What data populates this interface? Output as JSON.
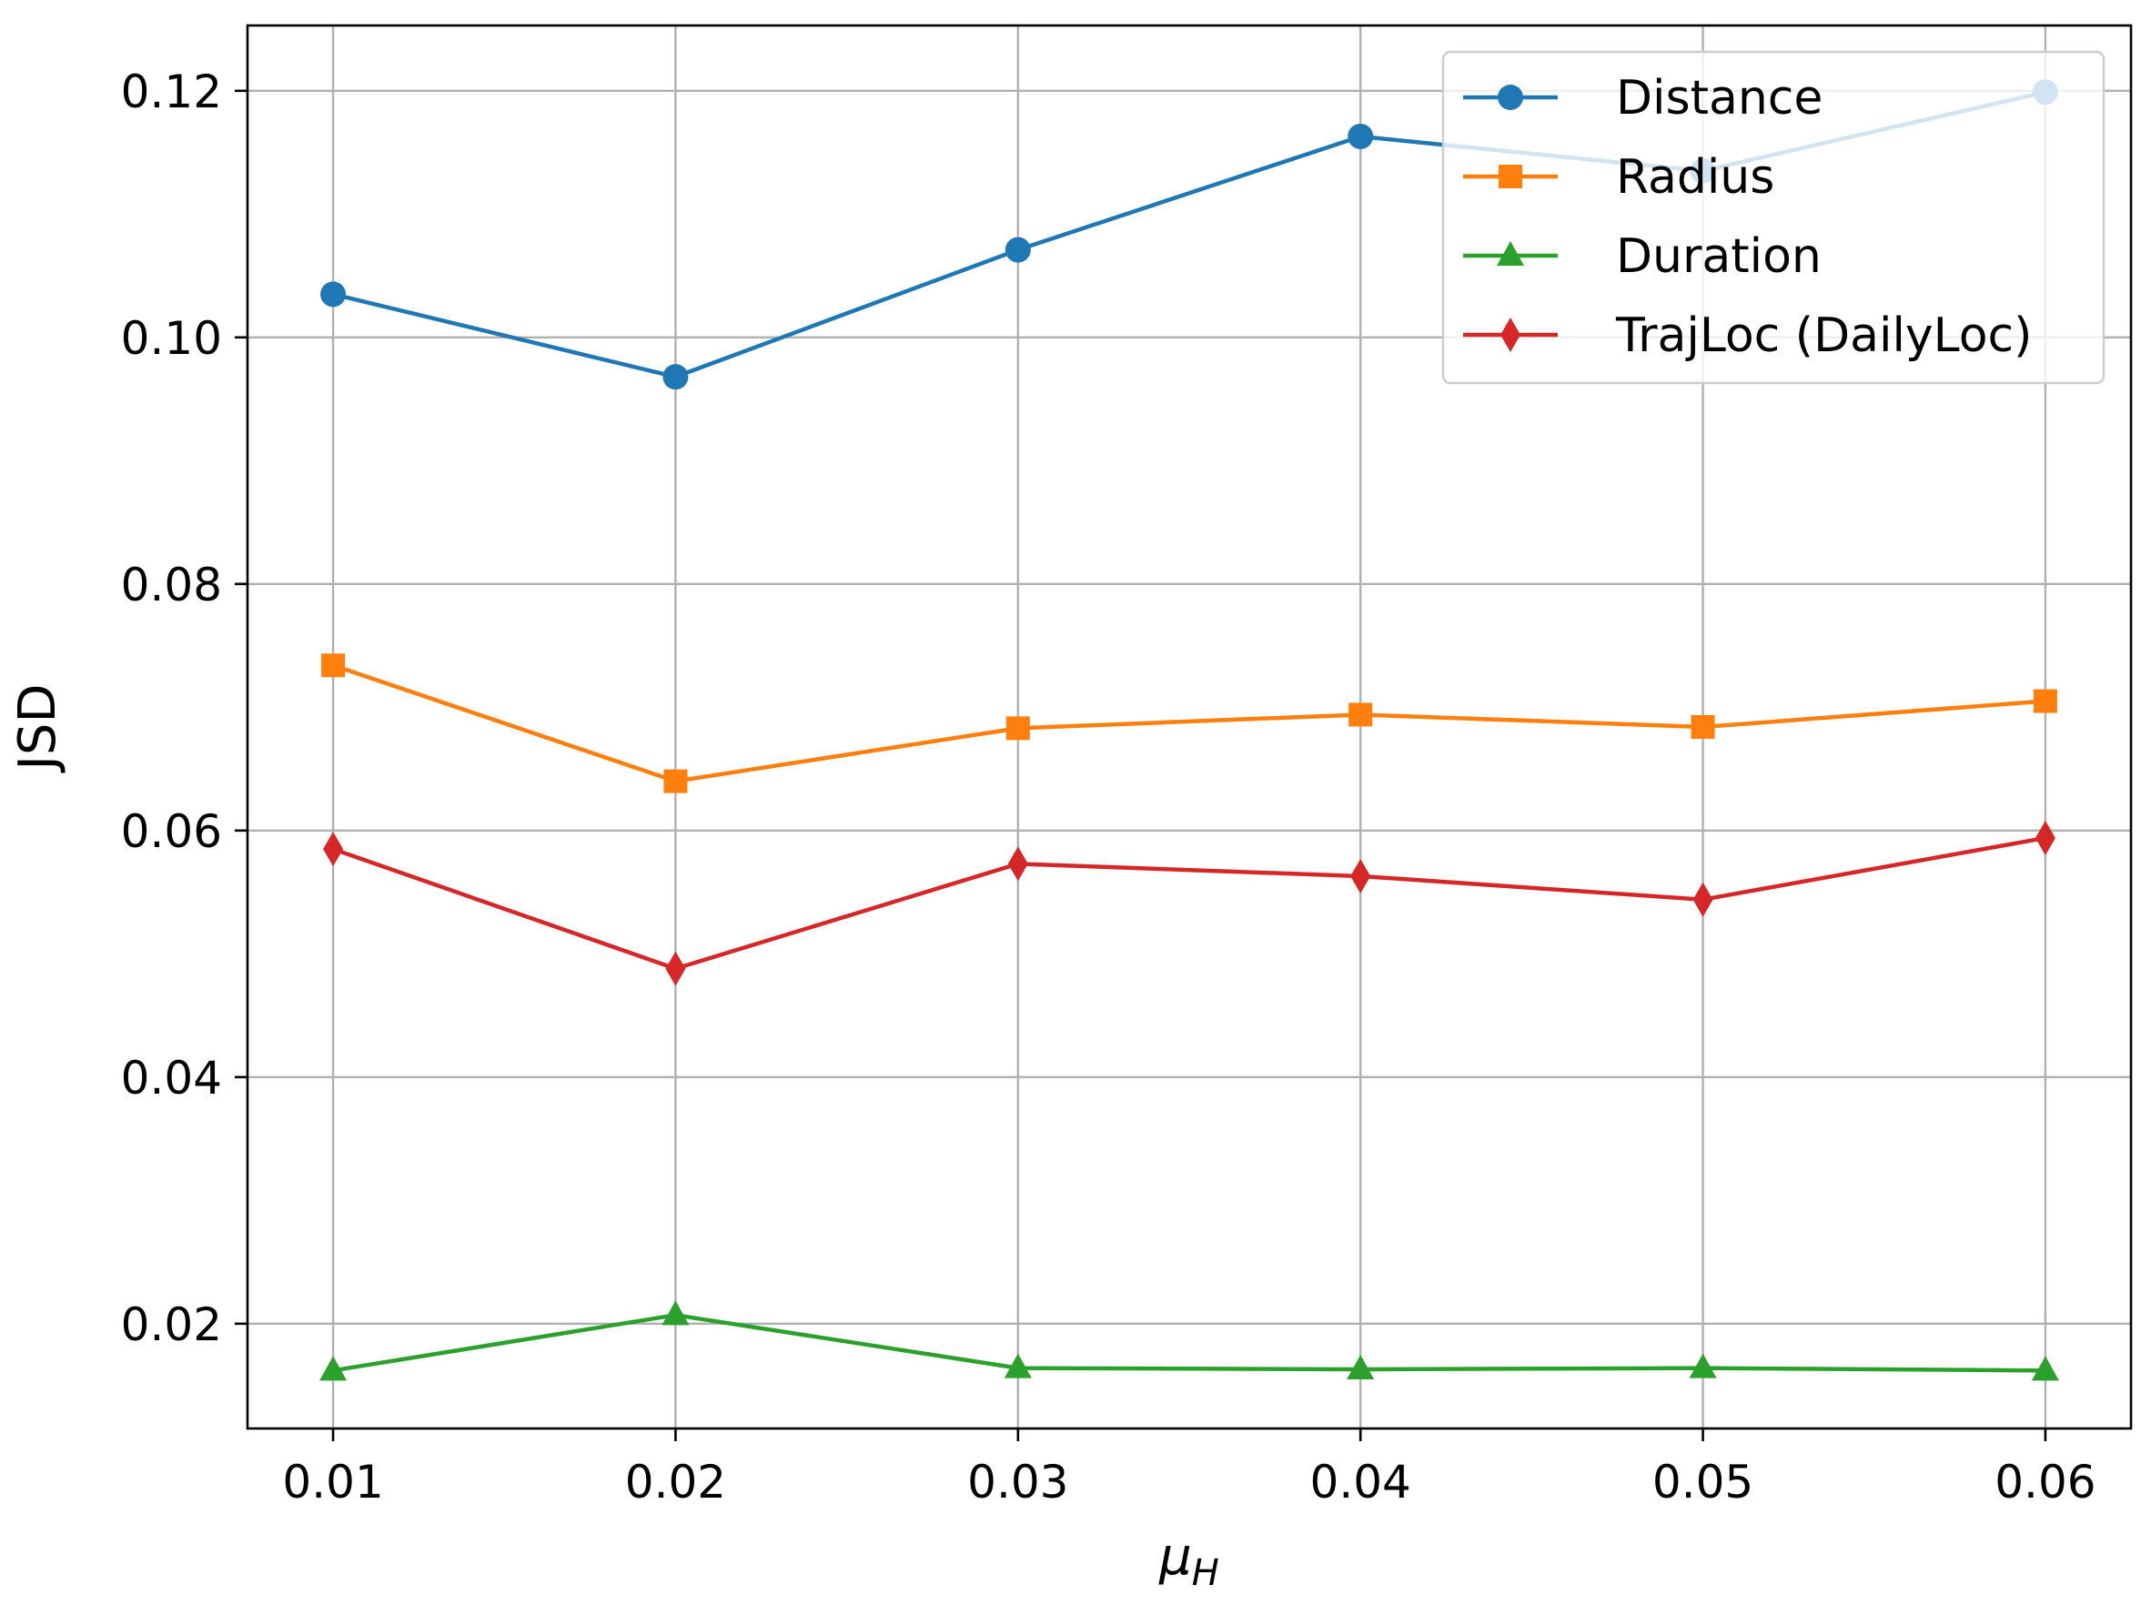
{
  "chart_data": {
    "type": "line",
    "title": "",
    "xlabel": "μ",
    "xlabel_sub": "H",
    "ylabel": "JSD",
    "x": [
      0.01,
      0.02,
      0.03,
      0.04,
      0.05,
      0.06
    ],
    "x_tick_labels": [
      "0.01",
      "0.02",
      "0.03",
      "0.04",
      "0.05",
      "0.06"
    ],
    "xlim": [
      0.0075,
      0.0625
    ],
    "ylim": [
      0.0115,
      0.1253
    ],
    "y_ticks": [
      0.02,
      0.04,
      0.06,
      0.08,
      0.1,
      0.12
    ],
    "y_tick_labels": [
      "0.02",
      "0.04",
      "0.06",
      "0.08",
      "0.10",
      "0.12"
    ],
    "grid": true,
    "legend_position": "top-right",
    "series": [
      {
        "name": "Distance",
        "color": "#1f77b4",
        "marker": "circle",
        "values": [
          0.1035,
          0.0968,
          0.1071,
          0.1163,
          0.1135,
          0.1199
        ]
      },
      {
        "name": "Radius",
        "color": "#ff7f0e",
        "marker": "square",
        "values": [
          0.0734,
          0.064,
          0.0683,
          0.0694,
          0.0684,
          0.0705
        ]
      },
      {
        "name": "Duration",
        "color": "#2ca02c",
        "marker": "triangle",
        "values": [
          0.0162,
          0.0207,
          0.0164,
          0.0163,
          0.0164,
          0.0162
        ]
      },
      {
        "name": "TrajLoc (DailyLoc)",
        "color": "#d62728",
        "marker": "diamond",
        "values": [
          0.0585,
          0.0488,
          0.0573,
          0.0563,
          0.0544,
          0.0594
        ]
      }
    ]
  }
}
